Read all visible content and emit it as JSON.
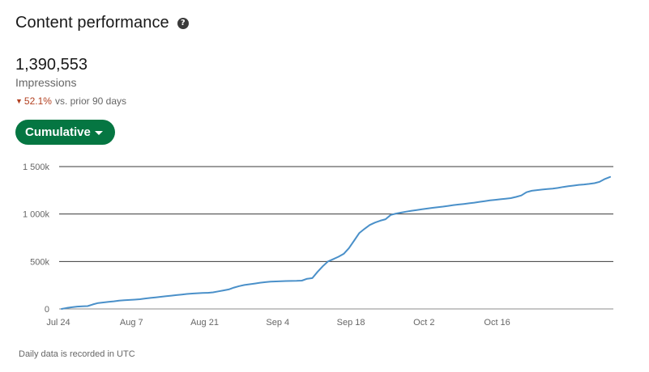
{
  "header": {
    "title": "Content performance",
    "help_icon": "question-circle-icon"
  },
  "kpi": {
    "value": "1,390,553",
    "label": "Impressions",
    "change_pct": "52.1%",
    "change_suffix": "vs. prior 90 days",
    "change_direction": "down",
    "change_color": "#b24020"
  },
  "toggle": {
    "label": "Cumulative",
    "color": "#057642"
  },
  "footnote": "Daily data is recorded in UTC",
  "chart_data": {
    "type": "line",
    "x_tick_labels": [
      "Jul 24",
      "Aug 7",
      "Aug 21",
      "Sep 4",
      "Sep 18",
      "Oct 2",
      "Oct 16"
    ],
    "y_tick_labels": [
      "0",
      "500k",
      "1 000k",
      "1 500k"
    ],
    "ylim": [
      0,
      1500000
    ],
    "grid": "horizontal",
    "line_color": "#4a90c9",
    "series": [
      {
        "values": [
          0,
          10000,
          18000,
          25000,
          28000,
          30000,
          48000,
          62000,
          68000,
          74000,
          80000,
          88000,
          92000,
          95000,
          98000,
          102000,
          110000,
          116000,
          122000,
          128000,
          134000,
          140000,
          146000,
          152000,
          158000,
          162000,
          165000,
          168000,
          170000,
          175000,
          185000,
          195000,
          205000,
          225000,
          240000,
          252000,
          260000,
          268000,
          276000,
          282000,
          287000,
          290000,
          292000,
          294000,
          295000,
          296000,
          298000,
          318000,
          325000,
          390000,
          450000,
          500000,
          525000,
          550000,
          580000,
          640000,
          720000,
          800000,
          845000,
          885000,
          910000,
          930000,
          945000,
          990000,
          1005000,
          1015000,
          1025000,
          1035000,
          1042000,
          1050000,
          1058000,
          1065000,
          1072000,
          1078000,
          1086000,
          1094000,
          1100000,
          1106000,
          1113000,
          1120000,
          1128000,
          1136000,
          1144000,
          1150000,
          1156000,
          1162000,
          1168000,
          1180000,
          1196000,
          1230000,
          1245000,
          1252000,
          1258000,
          1263000,
          1268000,
          1275000,
          1285000,
          1293000,
          1300000,
          1307000,
          1312000,
          1318000,
          1325000,
          1340000,
          1370000,
          1390553
        ]
      }
    ]
  }
}
